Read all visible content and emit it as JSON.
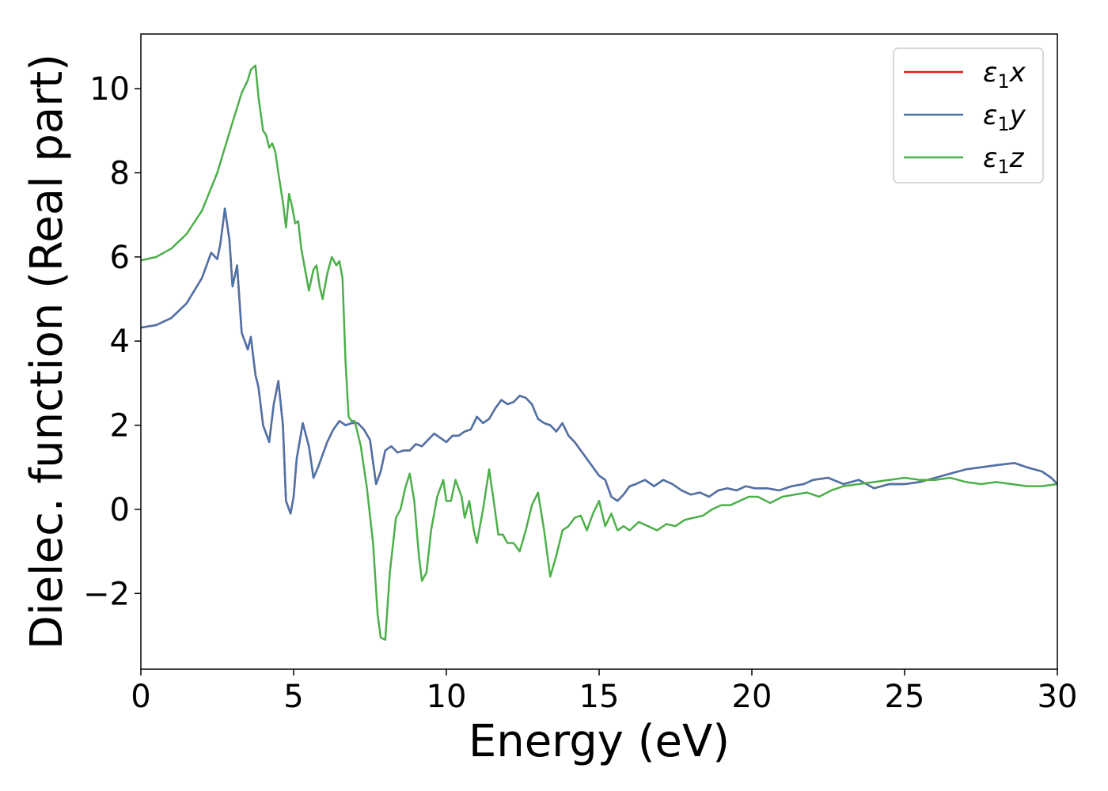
{
  "chart_data": {
    "type": "line",
    "xlabel": "Energy (eV)",
    "ylabel": "Dielec. function (Real part)",
    "xlim": [
      0,
      30
    ],
    "ylim": [
      -3.8,
      11.3
    ],
    "xticks": [
      0,
      5,
      10,
      15,
      20,
      25,
      30
    ],
    "yticks": [
      -2,
      0,
      2,
      4,
      6,
      8,
      10
    ],
    "xtick_labels": [
      "0",
      "5",
      "10",
      "15",
      "20",
      "25",
      "30"
    ],
    "ytick_labels": [
      "−2",
      "0",
      "2",
      "4",
      "6",
      "8",
      "10"
    ],
    "grid": false,
    "legend_position": "top-right",
    "series": [
      {
        "name": "ε1x",
        "color": "#e41a1c",
        "x": [
          0,
          0.5,
          1,
          1.5,
          2,
          2.3,
          2.5,
          2.6,
          2.75,
          2.9,
          3.0,
          3.15,
          3.3,
          3.5,
          3.6,
          3.75,
          3.85,
          4.0,
          4.2,
          4.35,
          4.5,
          4.65,
          4.75,
          4.9,
          5.0,
          5.1,
          5.3,
          5.5,
          5.65,
          5.8,
          5.95,
          6.1,
          6.3,
          6.5,
          6.7,
          6.9,
          7.1,
          7.3,
          7.5,
          7.7,
          7.85,
          8.0,
          8.2,
          8.4,
          8.6,
          8.8,
          9.0,
          9.2,
          9.4,
          9.6,
          9.8,
          10.0,
          10.2,
          10.4,
          10.6,
          10.8,
          11.0,
          11.2,
          11.4,
          11.6,
          11.8,
          12.0,
          12.2,
          12.4,
          12.6,
          12.8,
          13.0,
          13.2,
          13.4,
          13.6,
          13.8,
          14.0,
          14.2,
          14.4,
          14.6,
          14.8,
          15.0,
          15.2,
          15.4,
          15.6,
          15.8,
          16.0,
          16.2,
          16.5,
          16.8,
          17.1,
          17.4,
          17.7,
          18.0,
          18.3,
          18.6,
          18.9,
          19.2,
          19.5,
          19.8,
          20.1,
          20.5,
          20.9,
          21.3,
          21.7,
          22.0,
          22.5,
          23.0,
          23.5,
          24.0,
          24.5,
          25.0,
          25.5,
          26.0,
          26.5,
          27.0,
          27.5,
          28.0,
          28.6,
          29.0,
          29.5,
          29.8,
          30.0
        ],
        "y": [
          4.32,
          4.38,
          4.55,
          4.9,
          5.5,
          6.1,
          5.95,
          6.3,
          7.15,
          6.4,
          5.3,
          5.8,
          4.2,
          3.8,
          4.1,
          3.2,
          2.9,
          2.0,
          1.6,
          2.5,
          3.05,
          2.0,
          0.2,
          -0.1,
          0.3,
          1.2,
          2.05,
          1.5,
          0.75,
          1.0,
          1.3,
          1.6,
          1.9,
          2.1,
          2.0,
          2.05,
          2.05,
          1.9,
          1.65,
          0.6,
          0.9,
          1.4,
          1.5,
          1.35,
          1.4,
          1.4,
          1.55,
          1.5,
          1.65,
          1.8,
          1.7,
          1.6,
          1.75,
          1.75,
          1.85,
          1.9,
          2.2,
          2.05,
          2.15,
          2.4,
          2.6,
          2.5,
          2.55,
          2.7,
          2.65,
          2.5,
          2.15,
          2.05,
          2.0,
          1.85,
          2.05,
          1.75,
          1.6,
          1.4,
          1.2,
          1.0,
          0.8,
          0.7,
          0.3,
          0.2,
          0.35,
          0.55,
          0.6,
          0.7,
          0.55,
          0.7,
          0.6,
          0.45,
          0.35,
          0.4,
          0.3,
          0.45,
          0.5,
          0.45,
          0.55,
          0.5,
          0.5,
          0.45,
          0.55,
          0.6,
          0.7,
          0.75,
          0.6,
          0.7,
          0.5,
          0.6,
          0.6,
          0.65,
          0.75,
          0.85,
          0.95,
          1.0,
          1.05,
          1.1,
          1.0,
          0.9,
          0.75,
          0.6
        ]
      },
      {
        "name": "ε1y",
        "color": "#4a74aa",
        "x": [
          0,
          0.5,
          1,
          1.5,
          2,
          2.3,
          2.5,
          2.6,
          2.75,
          2.9,
          3.0,
          3.15,
          3.3,
          3.5,
          3.6,
          3.75,
          3.85,
          4.0,
          4.2,
          4.35,
          4.5,
          4.65,
          4.75,
          4.9,
          5.0,
          5.1,
          5.3,
          5.5,
          5.65,
          5.8,
          5.95,
          6.1,
          6.3,
          6.5,
          6.7,
          6.9,
          7.1,
          7.3,
          7.5,
          7.7,
          7.85,
          8.0,
          8.2,
          8.4,
          8.6,
          8.8,
          9.0,
          9.2,
          9.4,
          9.6,
          9.8,
          10.0,
          10.2,
          10.4,
          10.6,
          10.8,
          11.0,
          11.2,
          11.4,
          11.6,
          11.8,
          12.0,
          12.2,
          12.4,
          12.6,
          12.8,
          13.0,
          13.2,
          13.4,
          13.6,
          13.8,
          14.0,
          14.2,
          14.4,
          14.6,
          14.8,
          15.0,
          15.2,
          15.4,
          15.6,
          15.8,
          16.0,
          16.2,
          16.5,
          16.8,
          17.1,
          17.4,
          17.7,
          18.0,
          18.3,
          18.6,
          18.9,
          19.2,
          19.5,
          19.8,
          20.1,
          20.5,
          20.9,
          21.3,
          21.7,
          22.0,
          22.5,
          23.0,
          23.5,
          24.0,
          24.5,
          25.0,
          25.5,
          26.0,
          26.5,
          27.0,
          27.5,
          28.0,
          28.6,
          29.0,
          29.5,
          29.8,
          30.0
        ],
        "y": [
          4.32,
          4.38,
          4.55,
          4.9,
          5.5,
          6.1,
          5.95,
          6.3,
          7.15,
          6.4,
          5.3,
          5.8,
          4.2,
          3.8,
          4.1,
          3.2,
          2.9,
          2.0,
          1.6,
          2.5,
          3.05,
          2.0,
          0.2,
          -0.1,
          0.3,
          1.2,
          2.05,
          1.5,
          0.75,
          1.0,
          1.3,
          1.6,
          1.9,
          2.1,
          2.0,
          2.05,
          2.05,
          1.9,
          1.65,
          0.6,
          0.9,
          1.4,
          1.5,
          1.35,
          1.4,
          1.4,
          1.55,
          1.5,
          1.65,
          1.8,
          1.7,
          1.6,
          1.75,
          1.75,
          1.85,
          1.9,
          2.2,
          2.05,
          2.15,
          2.4,
          2.6,
          2.5,
          2.55,
          2.7,
          2.65,
          2.5,
          2.15,
          2.05,
          2.0,
          1.85,
          2.05,
          1.75,
          1.6,
          1.4,
          1.2,
          1.0,
          0.8,
          0.7,
          0.3,
          0.2,
          0.35,
          0.55,
          0.6,
          0.7,
          0.55,
          0.7,
          0.6,
          0.45,
          0.35,
          0.4,
          0.3,
          0.45,
          0.5,
          0.45,
          0.55,
          0.5,
          0.5,
          0.45,
          0.55,
          0.6,
          0.7,
          0.75,
          0.6,
          0.7,
          0.5,
          0.6,
          0.6,
          0.65,
          0.75,
          0.85,
          0.95,
          1.0,
          1.05,
          1.1,
          1.0,
          0.9,
          0.75,
          0.6
        ]
      },
      {
        "name": "ε1z",
        "color": "#4daf4a",
        "x": [
          0,
          0.5,
          1,
          1.5,
          2,
          2.5,
          3,
          3.3,
          3.5,
          3.6,
          3.75,
          3.85,
          4.0,
          4.1,
          4.2,
          4.3,
          4.4,
          4.5,
          4.65,
          4.75,
          4.85,
          4.95,
          5.05,
          5.15,
          5.25,
          5.35,
          5.5,
          5.65,
          5.75,
          5.85,
          5.95,
          6.1,
          6.25,
          6.4,
          6.5,
          6.6,
          6.7,
          6.8,
          6.9,
          7.0,
          7.2,
          7.4,
          7.6,
          7.75,
          7.85,
          8.0,
          8.15,
          8.35,
          8.5,
          8.65,
          8.8,
          8.95,
          9.1,
          9.2,
          9.35,
          9.5,
          9.7,
          9.9,
          10.0,
          10.15,
          10.3,
          10.5,
          10.6,
          10.75,
          10.9,
          11.0,
          11.2,
          11.4,
          11.55,
          11.7,
          11.85,
          12.0,
          12.2,
          12.4,
          12.6,
          12.8,
          13.0,
          13.2,
          13.4,
          13.6,
          13.8,
          14.0,
          14.2,
          14.4,
          14.6,
          14.8,
          15.0,
          15.2,
          15.4,
          15.6,
          15.8,
          16.0,
          16.3,
          16.6,
          16.9,
          17.2,
          17.5,
          17.8,
          18.1,
          18.4,
          18.7,
          19.0,
          19.3,
          19.6,
          19.9,
          20.2,
          20.6,
          21.0,
          21.4,
          21.8,
          22.2,
          22.6,
          23.0,
          23.5,
          24.0,
          24.5,
          25.0,
          25.5,
          26.0,
          26.5,
          27.0,
          27.5,
          28.0,
          28.5,
          29.0,
          29.5,
          30.0
        ],
        "y": [
          5.92,
          6.0,
          6.2,
          6.55,
          7.1,
          8.0,
          9.2,
          9.9,
          10.2,
          10.45,
          10.55,
          9.8,
          9.0,
          8.9,
          8.6,
          8.7,
          8.5,
          8.0,
          7.3,
          6.7,
          7.5,
          7.2,
          6.8,
          6.85,
          6.2,
          5.8,
          5.2,
          5.7,
          5.8,
          5.3,
          5.0,
          5.6,
          6.0,
          5.8,
          5.9,
          5.5,
          3.5,
          2.2,
          2.1,
          2.1,
          1.5,
          0.5,
          -0.8,
          -2.5,
          -3.05,
          -3.1,
          -1.5,
          -0.2,
          0.0,
          0.5,
          0.85,
          0.2,
          -1.1,
          -1.7,
          -1.5,
          -0.5,
          0.3,
          0.7,
          0.2,
          0.2,
          0.7,
          0.3,
          -0.2,
          0.2,
          -0.5,
          -0.8,
          0.0,
          0.95,
          0.2,
          -0.6,
          -0.6,
          -0.8,
          -0.8,
          -1.0,
          -0.5,
          0.1,
          0.4,
          -0.5,
          -1.6,
          -1.1,
          -0.5,
          -0.4,
          -0.2,
          -0.15,
          -0.5,
          -0.1,
          0.2,
          -0.4,
          -0.1,
          -0.5,
          -0.4,
          -0.5,
          -0.3,
          -0.4,
          -0.5,
          -0.35,
          -0.4,
          -0.25,
          -0.2,
          -0.15,
          0.0,
          0.1,
          0.1,
          0.2,
          0.3,
          0.3,
          0.15,
          0.3,
          0.35,
          0.4,
          0.3,
          0.45,
          0.55,
          0.6,
          0.65,
          0.7,
          0.75,
          0.7,
          0.7,
          0.75,
          0.65,
          0.6,
          0.65,
          0.6,
          0.55,
          0.55,
          0.6
        ]
      }
    ]
  }
}
